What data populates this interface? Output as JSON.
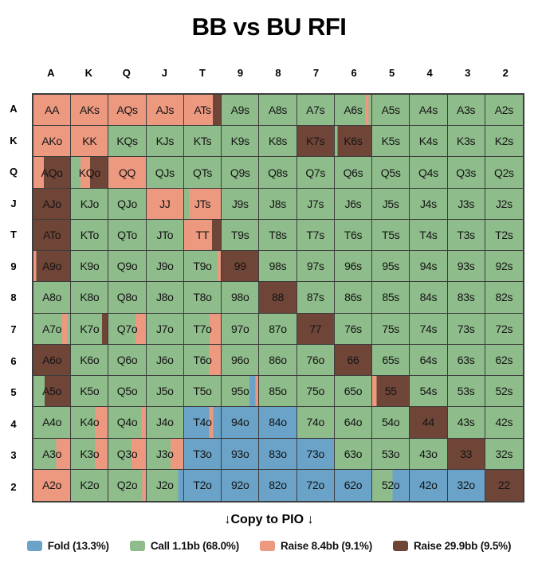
{
  "page": {
    "title": "BB vs BU RFI",
    "copy_to_pio": "↓Copy to PIO ↓"
  },
  "colors": {
    "fold": "#6ba3c8",
    "call": "#8fbc8b",
    "r8": "#ec9980",
    "r30": "#6f4538"
  },
  "chart_data": {
    "type": "heatmap",
    "title": "BB vs BU RFI",
    "x_categories": [
      "A",
      "K",
      "Q",
      "J",
      "T",
      "9",
      "8",
      "7",
      "6",
      "5",
      "4",
      "3",
      "2"
    ],
    "y_categories": [
      "A",
      "K",
      "Q",
      "J",
      "T",
      "9",
      "8",
      "7",
      "6",
      "5",
      "4",
      "3",
      "2"
    ],
    "legend_position": "bottom",
    "legend": [
      {
        "key": "fold",
        "label": "Fold (13.3%)"
      },
      {
        "key": "call",
        "label": "Call 1.1bb (68.0%)"
      },
      {
        "key": "r8",
        "label": "Raise 8.4bb (9.1%)"
      },
      {
        "key": "r30",
        "label": "Raise 29.9bb (9.5%)"
      }
    ],
    "cells": [
      [
        "AA|r8:100",
        "AKs|r8:100",
        "AQs|r8:100",
        "AJs|r8:100",
        "ATs|r8:78,r30:22",
        "A9s|call:100",
        "A8s|call:100",
        "A7s|call:100",
        "A6s|call:84,r8:8,call:8",
        "A5s|call:100",
        "A4s|call:100",
        "A3s|call:100",
        "A2s|call:100"
      ],
      [
        "AKo|r8:100",
        "KK|r8:100",
        "KQs|call:100",
        "KJs|call:100",
        "KTs|call:100",
        "K9s|call:100",
        "K8s|call:100",
        "K7s|r30:100",
        "K6s|call:8,r30:92",
        "K5s|call:100",
        "K4s|call:100",
        "K3s|call:100",
        "K2s|call:100"
      ],
      [
        "AQo|r8:28,r30:72",
        "KQo|call:26,r8:26,r30:48",
        "QQ|r8:100",
        "QJs|call:100",
        "QTs|call:100",
        "Q9s|call:100",
        "Q8s|call:100",
        "Q7s|call:100",
        "Q6s|call:100",
        "Q5s|call:100",
        "Q4s|call:100",
        "Q3s|call:100",
        "Q2s|call:100"
      ],
      [
        "AJo|r30:100",
        "KJo|call:100",
        "QJo|call:100",
        "JJ|r8:100",
        "JTs|call:13,r8:87",
        "J9s|call:100",
        "J8s|call:100",
        "J7s|call:100",
        "J6s|call:100",
        "J5s|call:100",
        "J4s|call:100",
        "J3s|call:100",
        "J2s|call:100"
      ],
      [
        "ATo|r30:100",
        "KTo|call:100",
        "QTo|call:100",
        "JTo|call:100",
        "TT|r8:76,r30:24",
        "T9s|call:100",
        "T8s|call:100",
        "T7s|call:100",
        "T6s|call:100",
        "T5s|call:100",
        "T4s|call:100",
        "T3s|call:100",
        "T2s|call:100"
      ],
      [
        "A9o|r8:8,r30:92",
        "K9o|call:100",
        "Q9o|call:100",
        "J9o|call:100",
        "T9o|call:91,r8:9",
        "99|r30:100",
        "98s|call:100",
        "97s|call:100",
        "96s|call:100",
        "95s|call:100",
        "94s|call:100",
        "93s|call:100",
        "92s|call:100"
      ],
      [
        "A8o|call:100",
        "K8o|call:100",
        "Q8o|call:100",
        "J8o|call:100",
        "T8o|call:100",
        "98o|call:100",
        "88|r30:100",
        "87s|call:100",
        "86s|call:100",
        "85s|call:100",
        "84s|call:100",
        "83s|call:100",
        "82s|call:100"
      ],
      [
        "A7o|call:78,r8:14,call:8",
        "K7o|call:85,r30:15",
        "Q7o|call:72,r8:28",
        "J7o|call:100",
        "T7o|call:70,r8:30",
        "97o|call:100",
        "87o|call:100",
        "77|r30:100",
        "76s|call:100",
        "75s|call:100",
        "74s|call:100",
        "73s|call:100",
        "72s|call:100"
      ],
      [
        "A6o|r30:100",
        "K6o|call:100",
        "Q6o|call:100",
        "J6o|call:100",
        "T6o|call:67,r8:33",
        "96o|call:100",
        "86o|call:100",
        "76o|call:100",
        "66|r30:100",
        "65s|call:100",
        "64s|call:100",
        "63s|call:100",
        "62s|call:100"
      ],
      [
        "A5o|call:30,r30:70",
        "K5o|call:100",
        "Q5o|call:100",
        "J5o|call:100",
        "T5o|call:100",
        "95o|call:76,fold:16,r8:8",
        "85o|call:100",
        "75o|call:100",
        "65o|call:100",
        "55|r8:12,r30:88",
        "54s|call:100",
        "53s|call:100",
        "52s|call:100"
      ],
      [
        "A4o|call:100",
        "K4o|call:65,r8:35",
        "Q4o|call:88,r8:12",
        "J4o|call:100",
        "T4o|fold:69,r8:10,fold:21",
        "94o|fold:100",
        "84o|fold:100",
        "74o|call:100",
        "64o|call:100",
        "54o|call:100",
        "44|r30:100",
        "43s|call:100",
        "42s|call:100"
      ],
      [
        "A3o|call:62,r8:38",
        "K3o|call:65,r8:35",
        "Q3o|call:62,r8:38",
        "J3o|call:65,r8:35",
        "T3o|fold:100",
        "93o|fold:100",
        "83o|fold:100",
        "73o|fold:100",
        "63o|call:100",
        "53o|call:100",
        "43o|call:100",
        "33|r30:100",
        "32s|call:100"
      ],
      [
        "A2o|r8:100",
        "K2o|call:100",
        "Q2o|call:90,r8:10",
        "J2o|call:86,fold:14",
        "T2o|fold:100",
        "92o|fold:100",
        "82o|fold:100",
        "72o|fold:100",
        "62o|fold:100",
        "52o|call:55,fold:45",
        "42o|fold:100",
        "32o|fold:100",
        "22|r30:100"
      ]
    ]
  }
}
